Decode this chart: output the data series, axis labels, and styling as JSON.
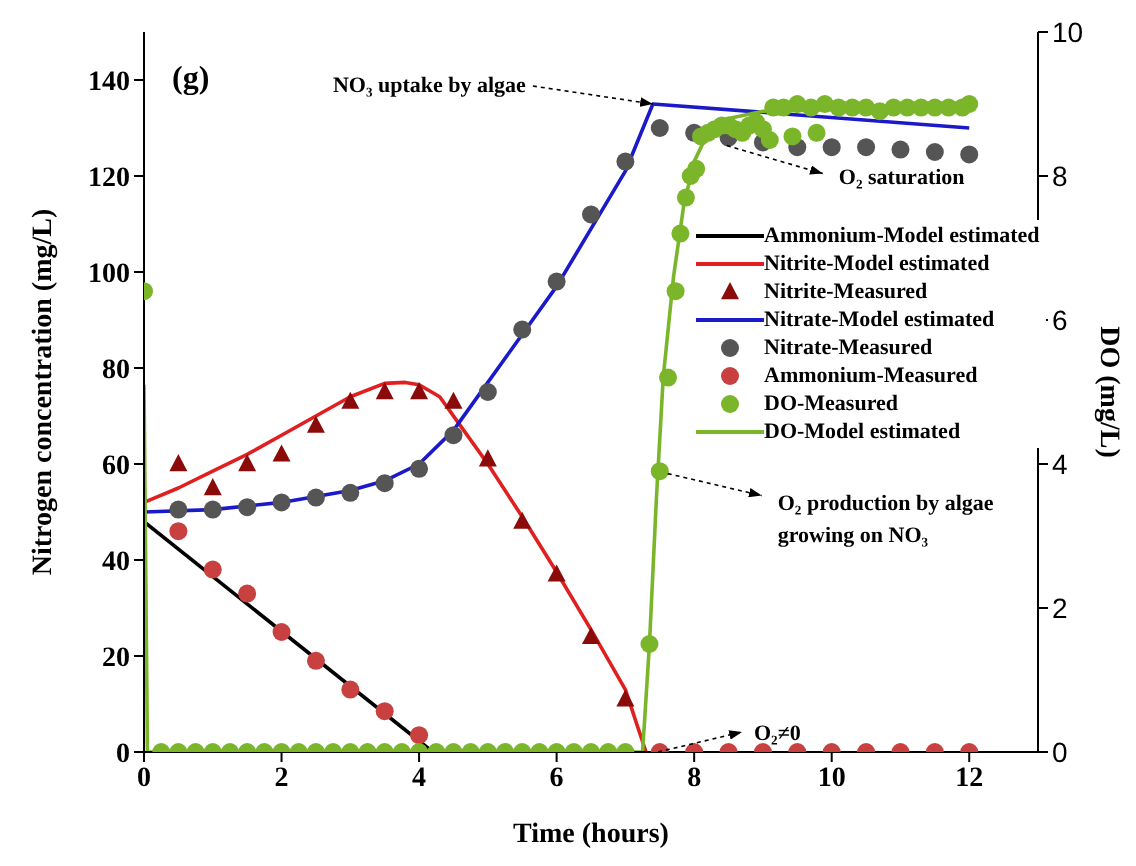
{
  "chart_data": {
    "type": "line",
    "title": "(g)",
    "xlabel": "Time (hours)",
    "ylabel": "Nitrogen concentration (mg/L)",
    "y2label": "DO (mg/L)",
    "xlim": [
      0,
      13
    ],
    "xticks": [
      0,
      2,
      4,
      6,
      8,
      10,
      12
    ],
    "ylim": [
      0,
      150
    ],
    "yticks": [
      0,
      20,
      40,
      60,
      80,
      100,
      120,
      140
    ],
    "y2lim": [
      0,
      10
    ],
    "y2ticks": [
      0,
      2,
      4,
      6,
      8,
      10
    ],
    "legend": "right",
    "annotations": [
      {
        "text": "NO₃ uptake by algae",
        "x": 7.4,
        "y": 135
      },
      {
        "text": "O₂ saturation",
        "x": 8.3,
        "y": 128
      },
      {
        "text": "O₂ production by algae growing on NO₃",
        "x": 7.5,
        "y": 58
      },
      {
        "text": "O₂≠0",
        "x": 7.3,
        "y": 0
      }
    ],
    "series": [
      {
        "name": "Ammonium-Model estimated",
        "marker": "none",
        "color": "#000000",
        "x": [
          0,
          4.2
        ],
        "values": [
          48,
          0
        ]
      },
      {
        "name": "Nitrite-Model estimated",
        "marker": "none",
        "color": "#e02020",
        "x": [
          0,
          0.5,
          1,
          1.5,
          2,
          2.5,
          3,
          3.5,
          3.8,
          4,
          4.3,
          4.6,
          5,
          5.5,
          6,
          6.5,
          7,
          7.3
        ],
        "values": [
          52,
          55,
          58.5,
          62,
          66,
          70,
          74,
          76.8,
          77,
          76.5,
          74,
          68,
          60,
          49,
          37.5,
          25.5,
          13,
          0
        ]
      },
      {
        "name": "Nitrite-Measured",
        "type": "scatter",
        "marker": "triangle",
        "color": "#8b0a0a",
        "x": [
          0.5,
          1,
          1.5,
          2,
          2.5,
          3,
          3.5,
          4,
          4.5,
          5,
          5.5,
          6,
          6.5,
          7
        ],
        "values": [
          60,
          55,
          60,
          62,
          68,
          73,
          75,
          75,
          73,
          61,
          48,
          37,
          24,
          11
        ]
      },
      {
        "name": "Nitrate-Model estimated",
        "marker": "none",
        "color": "#1a1ac8",
        "x": [
          0,
          1,
          2,
          3,
          3.5,
          4,
          4.5,
          5,
          6,
          7,
          7.4,
          12
        ],
        "values": [
          50,
          50.5,
          52,
          54.5,
          56.5,
          60,
          67,
          77,
          97,
          121,
          135,
          130
        ]
      },
      {
        "name": "Nitrate-Measured",
        "type": "scatter",
        "marker": "circle",
        "color": "#555555",
        "x": [
          0.5,
          1,
          1.5,
          2,
          2.5,
          3,
          3.5,
          4,
          4.5,
          5,
          5.5,
          6,
          6.5,
          7,
          7.5,
          8,
          8.5,
          9,
          9.5,
          10,
          10.5,
          11,
          11.5,
          12
        ],
        "values": [
          50.5,
          50.5,
          51,
          52,
          53,
          54,
          56,
          59,
          66,
          75,
          88,
          98,
          112,
          123,
          130,
          129,
          128,
          127,
          126,
          126,
          126,
          125.5,
          125,
          124.5
        ]
      },
      {
        "name": "Ammonium-Measured",
        "type": "scatter",
        "marker": "circle",
        "color": "#c84040",
        "x": [
          0.5,
          1,
          1.5,
          2,
          2.5,
          3,
          3.5,
          4,
          7.5,
          8,
          8.5,
          9,
          9.5,
          10,
          10.5,
          11,
          11.5,
          12
        ],
        "values": [
          46,
          38,
          33,
          25,
          19,
          13,
          8.5,
          3.5,
          0,
          0,
          0,
          0,
          0,
          0,
          0,
          0,
          0,
          0
        ]
      },
      {
        "name": "DO-Measured",
        "type": "scatter",
        "marker": "circle",
        "color": "#7ab52a",
        "axis": "y2",
        "x": [
          0,
          0.25,
          0.5,
          0.75,
          1,
          1.25,
          1.5,
          1.75,
          2,
          2.25,
          2.5,
          2.75,
          3,
          3.25,
          3.5,
          3.75,
          4,
          4.25,
          4.5,
          4.75,
          5,
          5.25,
          5.5,
          5.75,
          6,
          6.25,
          6.5,
          6.75,
          7,
          7.35,
          7.5,
          7.62,
          7.73,
          7.8,
          7.88,
          7.95,
          8.03,
          8.1,
          8.2,
          8.3,
          8.4,
          8.5,
          8.6,
          8.7,
          8.8,
          8.9,
          9,
          9.1,
          9.15,
          9.3,
          9.43,
          9.5,
          9.7,
          9.78,
          9.9,
          10.1,
          10.3,
          10.5,
          10.7,
          10.9,
          11.1,
          11.3,
          11.5,
          11.7,
          11.9,
          12
        ],
        "values": [
          6.4,
          0,
          0,
          0,
          0,
          0,
          0,
          0,
          0,
          0,
          0,
          0,
          0,
          0,
          0,
          0,
          0,
          0,
          0,
          0,
          0,
          0,
          0,
          0,
          0,
          0,
          0,
          0,
          0,
          1.5,
          3.9,
          5.2,
          6.4,
          7.2,
          7.7,
          8,
          8.1,
          8.55,
          8.6,
          8.65,
          8.7,
          8.7,
          8.65,
          8.6,
          8.7,
          8.75,
          8.65,
          8.5,
          8.95,
          8.95,
          8.55,
          9,
          8.95,
          8.6,
          9,
          8.95,
          8.95,
          8.95,
          8.9,
          8.95,
          8.95,
          8.95,
          8.95,
          8.95,
          8.95,
          9
        ]
      },
      {
        "name": "DO-Model estimated",
        "marker": "none",
        "color": "#7ab52a",
        "axis": "y2",
        "x": [
          0,
          0.05,
          7.25,
          7.35,
          7.45,
          7.55,
          7.7,
          7.85,
          8,
          8.2,
          8.5,
          9,
          10,
          12
        ],
        "values": [
          5.1,
          0,
          0,
          1.5,
          3.5,
          5.2,
          6.6,
          7.6,
          8.2,
          8.6,
          8.8,
          8.9,
          8.92,
          8.95
        ]
      }
    ]
  }
}
